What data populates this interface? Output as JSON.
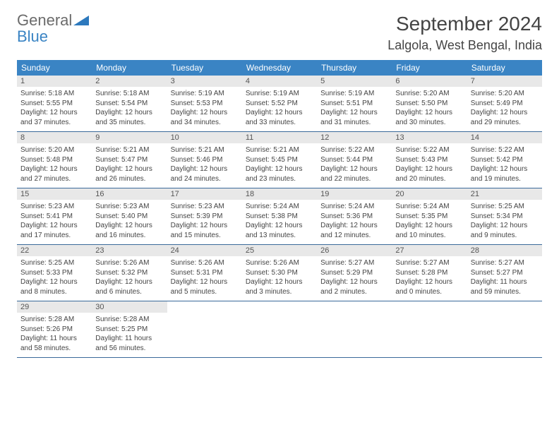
{
  "brand": {
    "general": "General",
    "blue": "Blue",
    "mark_color": "#2d79bd"
  },
  "title": {
    "month": "September 2024",
    "location": "Lalgola, West Bengal, India"
  },
  "colors": {
    "header_bg": "#3a84c4",
    "header_text": "#ffffff",
    "daynum_bg": "#e8e8e8",
    "daynum_text": "#555555",
    "body_text": "#444444",
    "week_border": "#3a6a9a",
    "page_bg": "#ffffff"
  },
  "typography": {
    "month_fontsize": 28,
    "location_fontsize": 18,
    "weekday_fontsize": 12,
    "daynum_fontsize": 11,
    "body_fontsize": 10
  },
  "weekdays": [
    "Sunday",
    "Monday",
    "Tuesday",
    "Wednesday",
    "Thursday",
    "Friday",
    "Saturday"
  ],
  "days": [
    {
      "n": "1",
      "sunrise": "5:18 AM",
      "sunset": "5:55 PM",
      "dl": "12 hours and 37 minutes."
    },
    {
      "n": "2",
      "sunrise": "5:18 AM",
      "sunset": "5:54 PM",
      "dl": "12 hours and 35 minutes."
    },
    {
      "n": "3",
      "sunrise": "5:19 AM",
      "sunset": "5:53 PM",
      "dl": "12 hours and 34 minutes."
    },
    {
      "n": "4",
      "sunrise": "5:19 AM",
      "sunset": "5:52 PM",
      "dl": "12 hours and 33 minutes."
    },
    {
      "n": "5",
      "sunrise": "5:19 AM",
      "sunset": "5:51 PM",
      "dl": "12 hours and 31 minutes."
    },
    {
      "n": "6",
      "sunrise": "5:20 AM",
      "sunset": "5:50 PM",
      "dl": "12 hours and 30 minutes."
    },
    {
      "n": "7",
      "sunrise": "5:20 AM",
      "sunset": "5:49 PM",
      "dl": "12 hours and 29 minutes."
    },
    {
      "n": "8",
      "sunrise": "5:20 AM",
      "sunset": "5:48 PM",
      "dl": "12 hours and 27 minutes."
    },
    {
      "n": "9",
      "sunrise": "5:21 AM",
      "sunset": "5:47 PM",
      "dl": "12 hours and 26 minutes."
    },
    {
      "n": "10",
      "sunrise": "5:21 AM",
      "sunset": "5:46 PM",
      "dl": "12 hours and 24 minutes."
    },
    {
      "n": "11",
      "sunrise": "5:21 AM",
      "sunset": "5:45 PM",
      "dl": "12 hours and 23 minutes."
    },
    {
      "n": "12",
      "sunrise": "5:22 AM",
      "sunset": "5:44 PM",
      "dl": "12 hours and 22 minutes."
    },
    {
      "n": "13",
      "sunrise": "5:22 AM",
      "sunset": "5:43 PM",
      "dl": "12 hours and 20 minutes."
    },
    {
      "n": "14",
      "sunrise": "5:22 AM",
      "sunset": "5:42 PM",
      "dl": "12 hours and 19 minutes."
    },
    {
      "n": "15",
      "sunrise": "5:23 AM",
      "sunset": "5:41 PM",
      "dl": "12 hours and 17 minutes."
    },
    {
      "n": "16",
      "sunrise": "5:23 AM",
      "sunset": "5:40 PM",
      "dl": "12 hours and 16 minutes."
    },
    {
      "n": "17",
      "sunrise": "5:23 AM",
      "sunset": "5:39 PM",
      "dl": "12 hours and 15 minutes."
    },
    {
      "n": "18",
      "sunrise": "5:24 AM",
      "sunset": "5:38 PM",
      "dl": "12 hours and 13 minutes."
    },
    {
      "n": "19",
      "sunrise": "5:24 AM",
      "sunset": "5:36 PM",
      "dl": "12 hours and 12 minutes."
    },
    {
      "n": "20",
      "sunrise": "5:24 AM",
      "sunset": "5:35 PM",
      "dl": "12 hours and 10 minutes."
    },
    {
      "n": "21",
      "sunrise": "5:25 AM",
      "sunset": "5:34 PM",
      "dl": "12 hours and 9 minutes."
    },
    {
      "n": "22",
      "sunrise": "5:25 AM",
      "sunset": "5:33 PM",
      "dl": "12 hours and 8 minutes."
    },
    {
      "n": "23",
      "sunrise": "5:26 AM",
      "sunset": "5:32 PM",
      "dl": "12 hours and 6 minutes."
    },
    {
      "n": "24",
      "sunrise": "5:26 AM",
      "sunset": "5:31 PM",
      "dl": "12 hours and 5 minutes."
    },
    {
      "n": "25",
      "sunrise": "5:26 AM",
      "sunset": "5:30 PM",
      "dl": "12 hours and 3 minutes."
    },
    {
      "n": "26",
      "sunrise": "5:27 AM",
      "sunset": "5:29 PM",
      "dl": "12 hours and 2 minutes."
    },
    {
      "n": "27",
      "sunrise": "5:27 AM",
      "sunset": "5:28 PM",
      "dl": "12 hours and 0 minutes."
    },
    {
      "n": "28",
      "sunrise": "5:27 AM",
      "sunset": "5:27 PM",
      "dl": "11 hours and 59 minutes."
    },
    {
      "n": "29",
      "sunrise": "5:28 AM",
      "sunset": "5:26 PM",
      "dl": "11 hours and 58 minutes."
    },
    {
      "n": "30",
      "sunrise": "5:28 AM",
      "sunset": "5:25 PM",
      "dl": "11 hours and 56 minutes."
    }
  ],
  "labels": {
    "sunrise": "Sunrise:",
    "sunset": "Sunset:",
    "daylight": "Daylight:"
  },
  "layout": {
    "first_weekday_index": 0,
    "total_cells": 35
  }
}
